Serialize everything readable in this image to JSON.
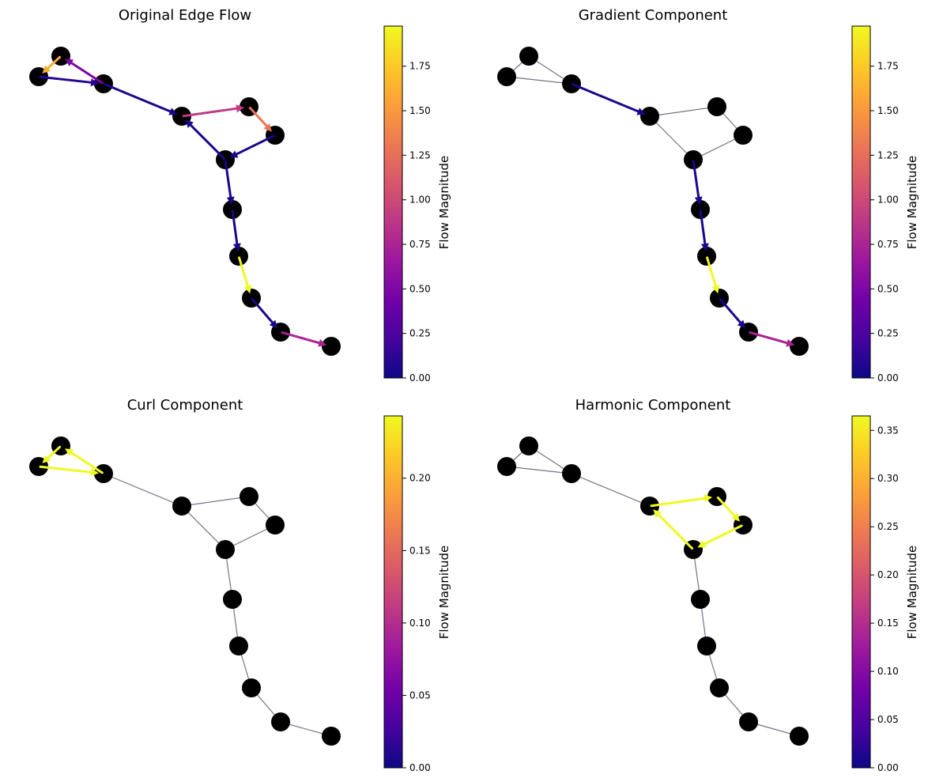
{
  "figure": {
    "node_color": "#000000",
    "edge_color": "#7a7185",
    "colormap": [
      "#0d0887",
      "#46039f",
      "#7201a8",
      "#9c179e",
      "#bd3786",
      "#d8576b",
      "#ed7953",
      "#fb9f3a",
      "#fdca26",
      "#f0f921"
    ]
  },
  "chart_data": [
    {
      "type": "network",
      "title": "Original Edge Flow",
      "colorbar": {
        "label": "Flow Magnitude",
        "range": [
          0,
          1.975
        ],
        "ticks": [
          0,
          0.25,
          0.5,
          0.75,
          1.0,
          1.25,
          1.5,
          1.75
        ],
        "tick_labels": [
          "0.00",
          "0.25",
          "0.50",
          "0.75",
          "1.00",
          "1.25",
          "1.50",
          "1.75"
        ]
      },
      "flows": [
        {
          "from": 1,
          "to": 0,
          "value": 1.6
        },
        {
          "from": 2,
          "to": 1,
          "value": 0.5
        },
        {
          "from": 0,
          "to": 2,
          "value": 0.1
        },
        {
          "from": 2,
          "to": 3,
          "value": 0.05
        },
        {
          "from": 3,
          "to": 4,
          "value": 0.9
        },
        {
          "from": 4,
          "to": 5,
          "value": 1.3
        },
        {
          "from": 5,
          "to": 6,
          "value": 0.05
        },
        {
          "from": 6,
          "to": 3,
          "value": 0.05
        },
        {
          "from": 6,
          "to": 7,
          "value": 0.05
        },
        {
          "from": 7,
          "to": 8,
          "value": 0.05
        },
        {
          "from": 8,
          "to": 9,
          "value": 1.975
        },
        {
          "from": 9,
          "to": 10,
          "value": 0.05
        },
        {
          "from": 10,
          "to": 11,
          "value": 0.75
        }
      ]
    },
    {
      "type": "network",
      "title": "Gradient Component",
      "colorbar": {
        "label": "Flow Magnitude",
        "range": [
          0,
          1.975
        ],
        "ticks": [
          0,
          0.25,
          0.5,
          0.75,
          1.0,
          1.25,
          1.5,
          1.75
        ],
        "tick_labels": [
          "0.00",
          "0.25",
          "0.50",
          "0.75",
          "1.00",
          "1.25",
          "1.50",
          "1.75"
        ]
      },
      "flows": [
        {
          "from": 2,
          "to": 3,
          "value": 0.05
        },
        {
          "from": 6,
          "to": 7,
          "value": 0.05
        },
        {
          "from": 7,
          "to": 8,
          "value": 0.05
        },
        {
          "from": 8,
          "to": 9,
          "value": 1.975
        },
        {
          "from": 9,
          "to": 10,
          "value": 0.05
        },
        {
          "from": 10,
          "to": 11,
          "value": 0.75
        }
      ]
    },
    {
      "type": "network",
      "title": "Curl Component",
      "colorbar": {
        "label": "Flow Magnitude",
        "range": [
          0,
          0.243
        ],
        "ticks": [
          0,
          0.05,
          0.1,
          0.15,
          0.2
        ],
        "tick_labels": [
          "0.00",
          "0.05",
          "0.10",
          "0.15",
          "0.20"
        ]
      },
      "flows": [
        {
          "from": 1,
          "to": 0,
          "value": 0.243
        },
        {
          "from": 0,
          "to": 2,
          "value": 0.243
        },
        {
          "from": 2,
          "to": 1,
          "value": 0.243
        }
      ]
    },
    {
      "type": "network",
      "title": "Harmonic Component",
      "colorbar": {
        "label": "Flow Magnitude",
        "range": [
          0,
          0.365
        ],
        "ticks": [
          0,
          0.05,
          0.1,
          0.15,
          0.2,
          0.25,
          0.3,
          0.35
        ],
        "tick_labels": [
          "0.00",
          "0.05",
          "0.10",
          "0.15",
          "0.20",
          "0.25",
          "0.30",
          "0.35"
        ]
      },
      "flows": [
        {
          "from": 3,
          "to": 4,
          "value": 0.365
        },
        {
          "from": 4,
          "to": 5,
          "value": 0.365
        },
        {
          "from": 5,
          "to": 6,
          "value": 0.365
        },
        {
          "from": 6,
          "to": 3,
          "value": 0.365
        }
      ]
    }
  ]
}
